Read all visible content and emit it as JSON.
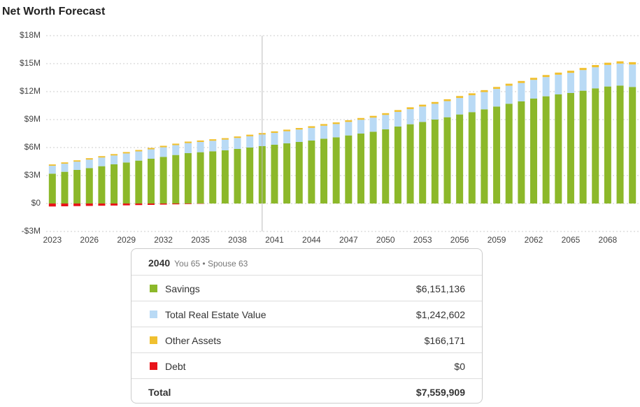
{
  "chart_data": {
    "type": "stacked_bar",
    "title": "Net Worth Forecast",
    "x": [
      2023,
      2024,
      2025,
      2026,
      2027,
      2028,
      2029,
      2030,
      2031,
      2032,
      2033,
      2034,
      2035,
      2036,
      2037,
      2038,
      2039,
      2040,
      2041,
      2042,
      2043,
      2044,
      2045,
      2046,
      2047,
      2048,
      2049,
      2050,
      2051,
      2052,
      2053,
      2054,
      2055,
      2056,
      2057,
      2058,
      2059,
      2060,
      2061,
      2062,
      2063,
      2064,
      2065,
      2066,
      2067,
      2068,
      2069,
      2070
    ],
    "xlim": [
      2022.5,
      2070.5
    ],
    "xticks": [
      2023,
      2026,
      2029,
      2032,
      2035,
      2038,
      2041,
      2044,
      2047,
      2050,
      2053,
      2056,
      2059,
      2062,
      2065,
      2068
    ],
    "ylim": [
      -3,
      18
    ],
    "yticks": [
      {
        "value": -3,
        "label": "-$3M"
      },
      {
        "value": 0,
        "label": "$0"
      },
      {
        "value": 3,
        "label": "$3M"
      },
      {
        "value": 6,
        "label": "$6M"
      },
      {
        "value": 9,
        "label": "$9M"
      },
      {
        "value": 12,
        "label": "$12M"
      },
      {
        "value": 15,
        "label": "$15M"
      },
      {
        "value": 18,
        "label": "$18M"
      }
    ],
    "grid": true,
    "series": [
      {
        "name": "Savings",
        "color": "#8cb82a",
        "values": [
          3.2,
          3.4,
          3.6,
          3.8,
          4.0,
          4.2,
          4.4,
          4.6,
          4.8,
          5.0,
          5.2,
          5.4,
          5.5,
          5.6,
          5.7,
          5.85,
          6.0,
          6.151136,
          6.3,
          6.45,
          6.6,
          6.75,
          6.95,
          7.1,
          7.3,
          7.5,
          7.7,
          7.95,
          8.25,
          8.5,
          8.75,
          9.0,
          9.25,
          9.55,
          9.8,
          10.1,
          10.4,
          10.7,
          10.95,
          11.25,
          11.5,
          11.7,
          11.85,
          12.1,
          12.35,
          12.55,
          12.65,
          12.5
        ]
      },
      {
        "name": "Total Real Estate Value",
        "color": "#b9daf5",
        "values": [
          0.85,
          0.87,
          0.89,
          0.91,
          0.93,
          0.95,
          0.97,
          0.99,
          1.01,
          1.03,
          1.06,
          1.08,
          1.1,
          1.13,
          1.15,
          1.18,
          1.21,
          1.242602,
          1.27,
          1.3,
          1.33,
          1.36,
          1.39,
          1.42,
          1.45,
          1.48,
          1.51,
          1.55,
          1.58,
          1.62,
          1.65,
          1.69,
          1.73,
          1.77,
          1.81,
          1.85,
          1.89,
          1.93,
          1.97,
          2.01,
          2.06,
          2.11,
          2.16,
          2.21,
          2.26,
          2.31,
          2.36,
          2.41
        ]
      },
      {
        "name": "Other Assets",
        "color": "#f0c030",
        "values": [
          0.14,
          0.14,
          0.14,
          0.15,
          0.15,
          0.15,
          0.15,
          0.15,
          0.15,
          0.16,
          0.16,
          0.16,
          0.16,
          0.16,
          0.16,
          0.16,
          0.17,
          0.166171,
          0.17,
          0.17,
          0.17,
          0.18,
          0.18,
          0.18,
          0.18,
          0.19,
          0.19,
          0.19,
          0.19,
          0.2,
          0.2,
          0.2,
          0.2,
          0.21,
          0.21,
          0.21,
          0.21,
          0.22,
          0.22,
          0.22,
          0.22,
          0.23,
          0.23,
          0.23,
          0.24,
          0.24,
          0.24,
          0.25
        ]
      },
      {
        "name": "Debt",
        "color": "#e8141a",
        "values": [
          -0.32,
          -0.3,
          -0.28,
          -0.26,
          -0.24,
          -0.22,
          -0.2,
          -0.17,
          -0.15,
          -0.12,
          -0.09,
          -0.06,
          -0.03,
          0,
          0,
          0,
          0,
          0,
          0,
          0,
          0,
          0,
          0,
          0,
          0,
          0,
          0,
          0,
          0,
          0,
          0,
          0,
          0,
          0,
          0,
          0,
          0,
          0,
          0,
          0,
          0,
          0,
          0,
          0,
          0,
          0,
          0,
          0
        ]
      }
    ]
  },
  "tooltip": {
    "year": 2040,
    "note": "You 65 • Spouse 63",
    "rows": [
      {
        "label": "Savings",
        "value": "$6,151,136"
      },
      {
        "label": "Total Real Estate Value",
        "value": "$1,242,602"
      },
      {
        "label": "Other Assets",
        "value": "$166,171"
      },
      {
        "label": "Debt",
        "value": "$0"
      }
    ],
    "total_label": "Total",
    "total": "$7,559,909"
  }
}
